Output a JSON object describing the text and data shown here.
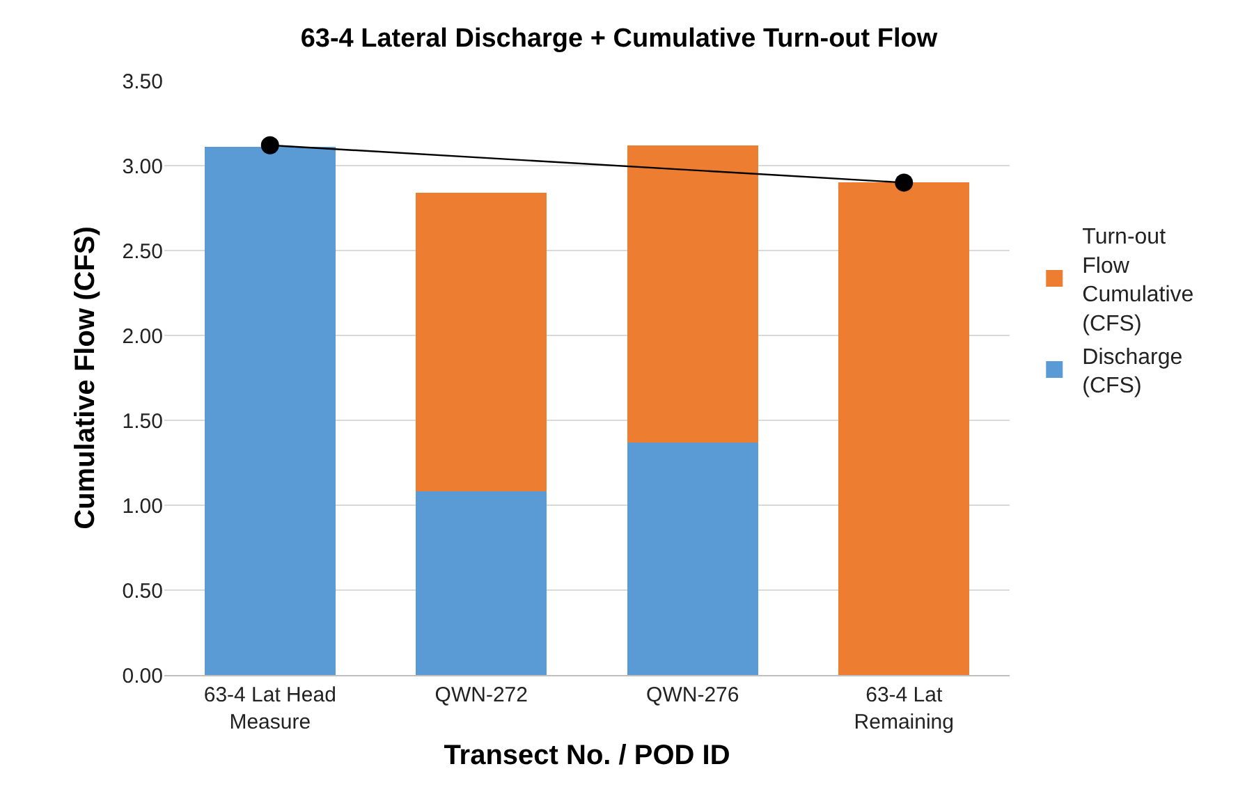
{
  "chart_data": {
    "type": "bar",
    "title": "63-4 Lateral Discharge + Cumulative Turn-out Flow",
    "xlabel": "Transect No. / POD ID",
    "ylabel": "Cumulative Flow (CFS)",
    "categories": [
      "63-4 Lat Head\nMeasure",
      "QWN-272",
      "QWN-276",
      "63-4 Lat\nRemaining"
    ],
    "stacked": true,
    "series": [
      {
        "name": "Discharge\n(CFS)",
        "color": "#5b9bd5",
        "values": [
          3.11,
          1.08,
          1.37,
          null
        ]
      },
      {
        "name": "Turn-out\nFlow\nCumulative\n(CFS)",
        "color": "#ed7d31",
        "values": [
          null,
          1.76,
          1.75,
          2.9
        ]
      },
      {
        "type": "line",
        "color": "#000000",
        "x": [
          "63-4 Lat Head\nMeasure",
          "63-4 Lat\nRemaining"
        ],
        "values": [
          3.12,
          2.9
        ],
        "marker": "circle"
      }
    ],
    "ylim": [
      0,
      3.5
    ],
    "yticks": [
      {
        "value": 0,
        "label": "0.00"
      },
      {
        "value": 0.5,
        "label": "0.50"
      },
      {
        "value": 1,
        "label": "1.00"
      },
      {
        "value": 1.5,
        "label": "1.50"
      },
      {
        "value": 2,
        "label": "2.00"
      },
      {
        "value": 2.5,
        "label": "2.50"
      },
      {
        "value": 3,
        "label": "3.00"
      },
      {
        "value": 3.5,
        "label": "3.50"
      }
    ],
    "grid": "y",
    "legend": "right"
  }
}
